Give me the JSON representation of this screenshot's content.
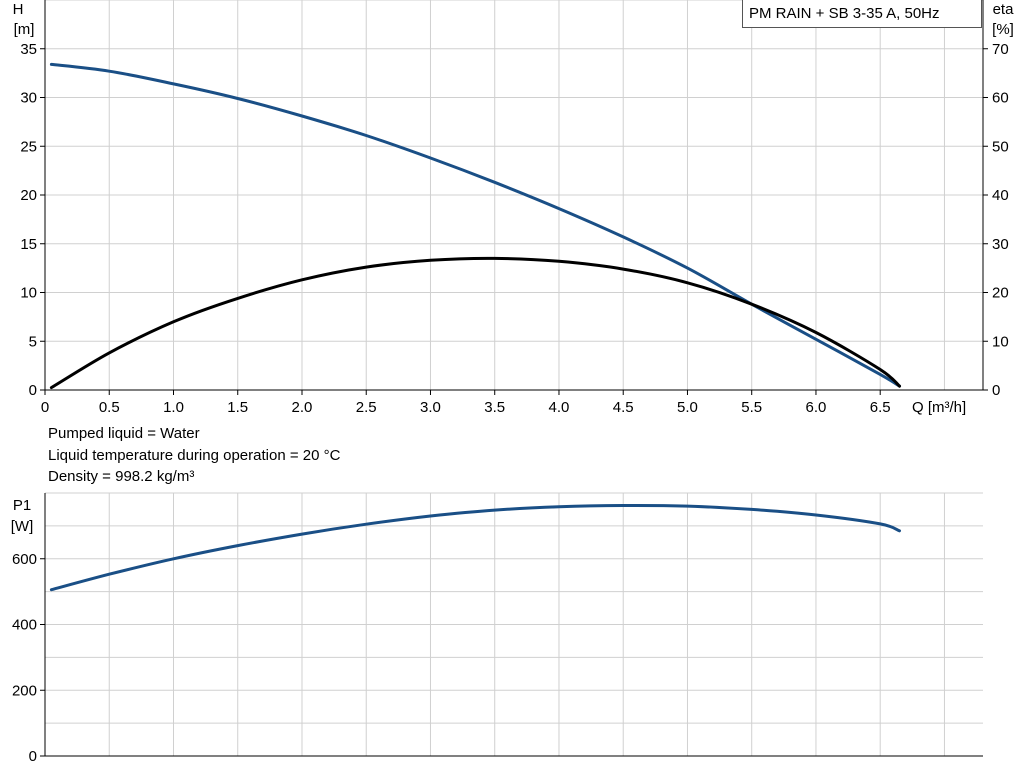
{
  "header": {
    "pump_label": "PM RAIN + SB 3-35 A, 50Hz"
  },
  "info": {
    "line1": "Pumped liquid = Water",
    "line2": "Liquid temperature during operation = 20 °C",
    "line3": "Density = 998.2 kg/m³"
  },
  "colors": {
    "head_curve": "#1a4f86",
    "eta_curve": "#000000",
    "power_curve": "#1a4f86",
    "grid": "#d0d0d0"
  },
  "chart_data": [
    {
      "type": "line",
      "title": "",
      "xlabel": "Q [m³/h]",
      "ylabel_top": "H",
      "ylabel_bottom": "[m]",
      "y2label_top": "eta",
      "y2label_bottom": "[%]",
      "xlim": [
        0,
        7.3
      ],
      "ylim": [
        0,
        40
      ],
      "y2lim": [
        0,
        80
      ],
      "xticks": [
        "0",
        "0.5",
        "1.0",
        "1.5",
        "2.0",
        "2.5",
        "3.0",
        "3.5",
        "4.0",
        "4.5",
        "5.0",
        "5.5",
        "6.0",
        "6.5"
      ],
      "yticks": [
        "0",
        "5",
        "10",
        "15",
        "20",
        "25",
        "30",
        "35"
      ],
      "y2ticks": [
        "0",
        "10",
        "20",
        "30",
        "40",
        "50",
        "60",
        "70"
      ],
      "grid": true,
      "series": [
        {
          "axis": "left",
          "x": [
            0.05,
            0.5,
            1.0,
            1.5,
            2.0,
            2.5,
            3.0,
            3.5,
            4.0,
            4.5,
            5.0,
            5.5,
            6.0,
            6.5,
            6.65
          ],
          "values": [
            33.4,
            32.7,
            31.4,
            29.9,
            28.1,
            26.1,
            23.8,
            21.3,
            18.6,
            15.7,
            12.5,
            8.8,
            5.2,
            1.6,
            0.4
          ]
        },
        {
          "axis": "right",
          "x": [
            0.05,
            0.5,
            1.0,
            1.5,
            2.0,
            2.5,
            3.0,
            3.5,
            4.0,
            4.5,
            5.0,
            5.5,
            6.0,
            6.5,
            6.65
          ],
          "values": [
            0.5,
            7.6,
            14.0,
            18.8,
            22.6,
            25.2,
            26.6,
            27.0,
            26.4,
            24.8,
            22.0,
            17.6,
            11.8,
            4.2,
            0.8
          ]
        }
      ]
    },
    {
      "type": "line",
      "title": "",
      "xlabel": "",
      "ylabel_top": "P1",
      "ylabel_bottom": "[W]",
      "xlim": [
        0,
        7.3
      ],
      "ylim": [
        0,
        800
      ],
      "yticks": [
        "0",
        "200",
        "400",
        "600"
      ],
      "grid": true,
      "series": [
        {
          "axis": "left",
          "x": [
            0.05,
            0.5,
            1.0,
            1.5,
            2.0,
            2.5,
            3.0,
            3.5,
            4.0,
            4.5,
            5.0,
            5.5,
            6.0,
            6.5,
            6.65
          ],
          "values": [
            506,
            553,
            600,
            640,
            675,
            705,
            730,
            748,
            758,
            762,
            760,
            750,
            733,
            706,
            685
          ]
        }
      ]
    }
  ]
}
